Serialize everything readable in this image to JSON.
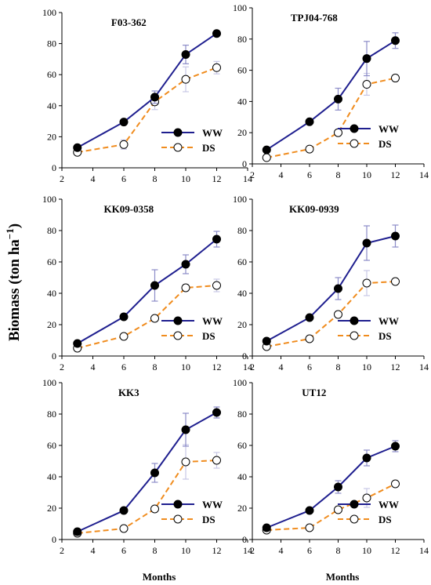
{
  "ylabel": "Biomass (ton ha",
  "ylabel_exp": "−1",
  "ylabel_close": ")",
  "xlabel": "Months",
  "chart_data": [
    {
      "type": "line",
      "title": "F03-362",
      "x": [
        3,
        6,
        8,
        10,
        12
      ],
      "xlim": [
        2,
        14
      ],
      "ylim": [
        0,
        100
      ],
      "xticks": [
        2,
        4,
        6,
        8,
        10,
        12,
        14
      ],
      "yticks": [
        0,
        20,
        40,
        60,
        80,
        100
      ],
      "series": [
        {
          "name": "WW",
          "values": [
            13,
            29.5,
            45.5,
            73,
            86.5
          ],
          "errors": [
            1,
            1.5,
            4,
            6,
            1.5
          ],
          "color": "#1f1f8f",
          "marker": "filled"
        },
        {
          "name": "DS",
          "values": [
            10,
            15,
            42.5,
            57,
            64.5
          ],
          "errors": [
            1,
            3,
            5,
            8,
            4
          ],
          "color": "#f08c1e",
          "marker": "open"
        }
      ],
      "legend": "bottom-right"
    },
    {
      "type": "line",
      "title": "TPJ04-768",
      "x": [
        3,
        6,
        8,
        10,
        12
      ],
      "xlim": [
        2,
        14
      ],
      "ylim": [
        0,
        100
      ],
      "xticks": [
        2,
        4,
        6,
        8,
        10,
        12,
        14
      ],
      "yticks": [
        0,
        20,
        40,
        60,
        80,
        100
      ],
      "series": [
        {
          "name": "WW",
          "values": [
            9,
            27,
            41.5,
            67.5,
            79
          ],
          "errors": [
            1,
            1.5,
            7,
            11,
            5
          ],
          "color": "#1f1f8f",
          "marker": "filled"
        },
        {
          "name": "DS",
          "values": [
            4,
            9.5,
            20,
            51,
            55
          ],
          "errors": [
            1,
            1,
            2,
            7,
            2
          ],
          "color": "#f08c1e",
          "marker": "open"
        }
      ],
      "legend": "bottom-right"
    },
    {
      "type": "line",
      "title": "KK09-0358",
      "x": [
        3,
        6,
        8,
        10,
        12
      ],
      "xlim": [
        2,
        14
      ],
      "ylim": [
        0,
        100
      ],
      "xticks": [
        2,
        4,
        6,
        8,
        10,
        12,
        14
      ],
      "yticks": [
        0,
        20,
        40,
        60,
        80,
        100
      ],
      "series": [
        {
          "name": "WW",
          "values": [
            8,
            25,
            45,
            58.5,
            74.5
          ],
          "errors": [
            1,
            1.5,
            10,
            6,
            5
          ],
          "color": "#1f1f8f",
          "marker": "filled"
        },
        {
          "name": "DS",
          "values": [
            5,
            12.5,
            24,
            43.5,
            45
          ],
          "errors": [
            1,
            1,
            2,
            2,
            4
          ],
          "color": "#f08c1e",
          "marker": "open"
        }
      ],
      "legend": "bottom-right"
    },
    {
      "type": "line",
      "title": "KK09-0939",
      "x": [
        3,
        6,
        8,
        10,
        12
      ],
      "xlim": [
        2,
        14
      ],
      "ylim": [
        0,
        100
      ],
      "xticks": [
        2,
        4,
        6,
        8,
        10,
        12,
        14
      ],
      "yticks": [
        0,
        20,
        40,
        60,
        80,
        100
      ],
      "series": [
        {
          "name": "WW",
          "values": [
            9.5,
            24.5,
            43,
            72,
            76.5
          ],
          "errors": [
            1,
            1.5,
            7,
            11,
            7
          ],
          "color": "#1f1f8f",
          "marker": "filled"
        },
        {
          "name": "DS",
          "values": [
            6,
            11,
            26.5,
            46.5,
            47.5
          ],
          "errors": [
            1,
            1,
            2,
            8,
            1.5
          ],
          "color": "#f08c1e",
          "marker": "open"
        }
      ],
      "legend": "bottom-right"
    },
    {
      "type": "line",
      "title": "KK3",
      "x": [
        3,
        6,
        8,
        10,
        12
      ],
      "xlim": [
        2,
        14
      ],
      "ylim": [
        0,
        100
      ],
      "xticks": [
        2,
        4,
        6,
        8,
        10,
        12,
        14
      ],
      "yticks": [
        0,
        20,
        40,
        60,
        80,
        100
      ],
      "series": [
        {
          "name": "WW",
          "values": [
            5,
            18.5,
            42.5,
            70,
            81
          ],
          "errors": [
            1,
            1,
            6,
            10.5,
            3.5
          ],
          "color": "#1f1f8f",
          "marker": "filled"
        },
        {
          "name": "DS",
          "values": [
            4,
            7,
            19.5,
            49.5,
            50.5
          ],
          "errors": [
            1,
            0.5,
            1.5,
            11,
            5
          ],
          "color": "#f08c1e",
          "marker": "open"
        }
      ],
      "legend": "bottom-right"
    },
    {
      "type": "line",
      "title": "UT12",
      "x": [
        3,
        6,
        8,
        10,
        12
      ],
      "xlim": [
        2,
        14
      ],
      "ylim": [
        0,
        100
      ],
      "xticks": [
        2,
        4,
        6,
        8,
        10,
        12,
        14
      ],
      "yticks": [
        0,
        20,
        40,
        60,
        80,
        100
      ],
      "series": [
        {
          "name": "WW",
          "values": [
            7.5,
            18.5,
            33.5,
            52,
            59.5
          ],
          "errors": [
            1,
            1,
            4,
            5,
            3.5
          ],
          "color": "#1f1f8f",
          "marker": "filled"
        },
        {
          "name": "DS",
          "values": [
            6,
            7.5,
            19,
            26.5,
            35.5
          ],
          "errors": [
            1,
            0.5,
            1.5,
            6,
            1.5
          ],
          "color": "#f08c1e",
          "marker": "open"
        }
      ],
      "legend": "bottom-right"
    }
  ]
}
